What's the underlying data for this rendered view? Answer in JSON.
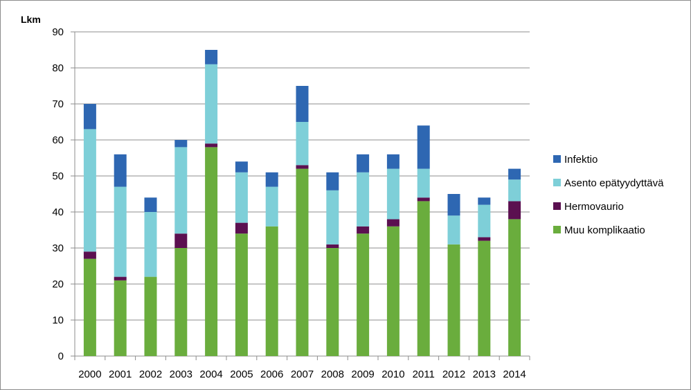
{
  "chart_data": {
    "type": "bar",
    "stacked": true,
    "ylabel": "Lkm",
    "xlabel": "",
    "ylim": [
      0,
      90
    ],
    "yticks": [
      0,
      10,
      20,
      30,
      40,
      50,
      60,
      70,
      80,
      90
    ],
    "grid": true,
    "legend_position": "right",
    "categories": [
      "2000",
      "2001",
      "2002",
      "2003",
      "2004",
      "2005",
      "2006",
      "2007",
      "2008",
      "2009",
      "2010",
      "2011",
      "2012",
      "2013",
      "2014"
    ],
    "series": [
      {
        "name": "Muu komplikaatio",
        "color": "#6aad3d",
        "values": [
          27,
          21,
          22,
          30,
          58,
          34,
          36,
          52,
          30,
          34,
          36,
          43,
          31,
          32,
          38
        ]
      },
      {
        "name": "Hermovaurio",
        "color": "#5b1050",
        "values": [
          2,
          1,
          0,
          4,
          1,
          3,
          0,
          1,
          1,
          2,
          2,
          1,
          0,
          1,
          5
        ]
      },
      {
        "name": "Asento epätyydyttävä",
        "color": "#7ecfd8",
        "values": [
          34,
          25,
          18,
          24,
          22,
          14,
          11,
          12,
          15,
          15,
          14,
          8,
          8,
          9,
          6
        ]
      },
      {
        "name": "Infektio",
        "color": "#2e67b2",
        "values": [
          7,
          9,
          4,
          2,
          4,
          3,
          4,
          10,
          5,
          5,
          4,
          12,
          6,
          2,
          3
        ]
      }
    ],
    "legend_order": [
      "Infektio",
      "Asento epätyydyttävä",
      "Hermovaurio",
      "Muu komplikaatio"
    ]
  }
}
